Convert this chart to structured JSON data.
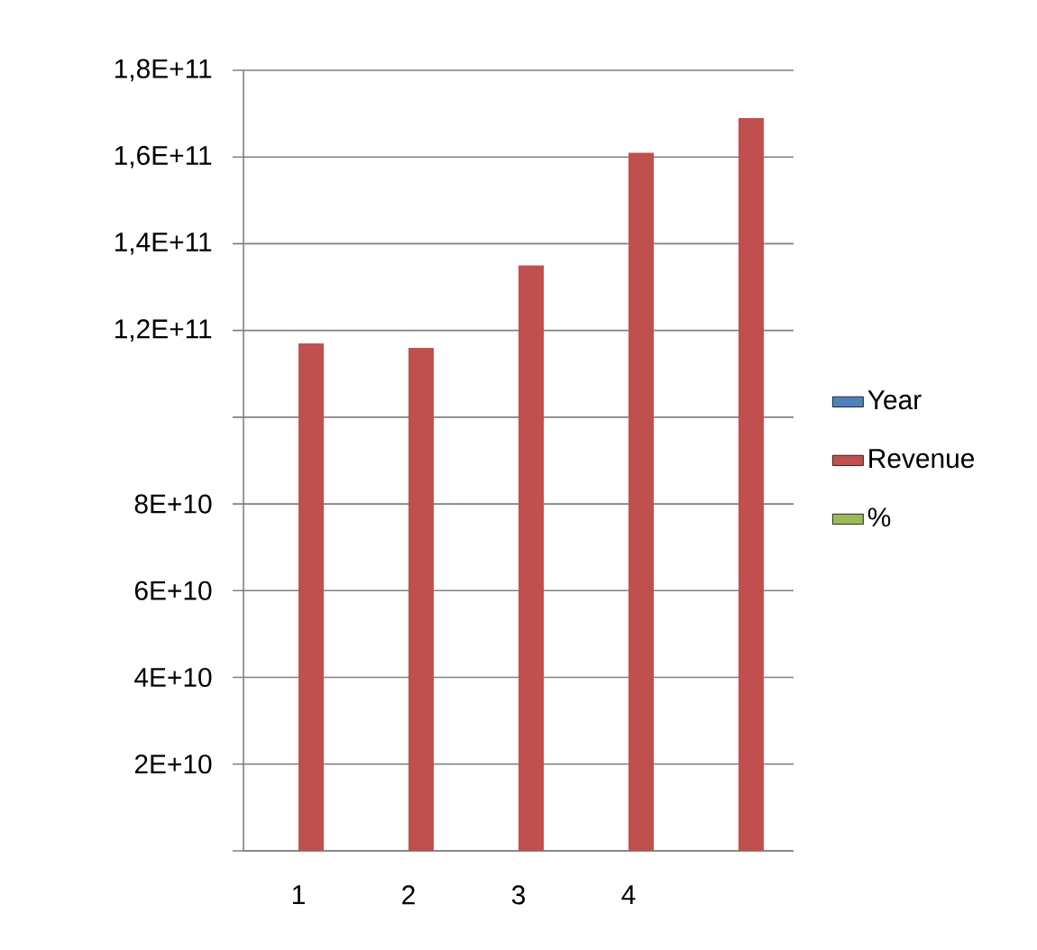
{
  "chart_data": {
    "type": "bar",
    "categories": [
      "1",
      "2",
      "3",
      "4",
      null
    ],
    "series": [
      {
        "name": "Year",
        "color": "#4f81bd",
        "values": [
          null,
          null,
          null,
          null,
          null
        ]
      },
      {
        "name": "Revenue",
        "color": "#c0504d",
        "values": [
          117000000000.0,
          116000000000.0,
          135000000000.0,
          161000000000.0,
          169000000000.0
        ]
      },
      {
        "name": "%",
        "color": "#9bbb59",
        "values": [
          null,
          null,
          null,
          null,
          null
        ]
      }
    ],
    "ylim": [
      0,
      180000000000.0
    ],
    "yticks": [
      {
        "value": 0,
        "label": null
      },
      {
        "value": 20000000000.0,
        "label": "2E+10"
      },
      {
        "value": 40000000000.0,
        "label": "4E+10"
      },
      {
        "value": 60000000000.0,
        "label": "6E+10"
      },
      {
        "value": 80000000000.0,
        "label": "8E+10"
      },
      {
        "value": 100000000000.0,
        "label": null
      },
      {
        "value": 120000000000.0,
        "label": "1,2E+11"
      },
      {
        "value": 140000000000.0,
        "label": "1,4E+11"
      },
      {
        "value": 160000000000.0,
        "label": "1,6E+11"
      },
      {
        "value": 180000000000.0,
        "label": "1,8E+11"
      }
    ],
    "grid": "y",
    "legend": "right"
  }
}
